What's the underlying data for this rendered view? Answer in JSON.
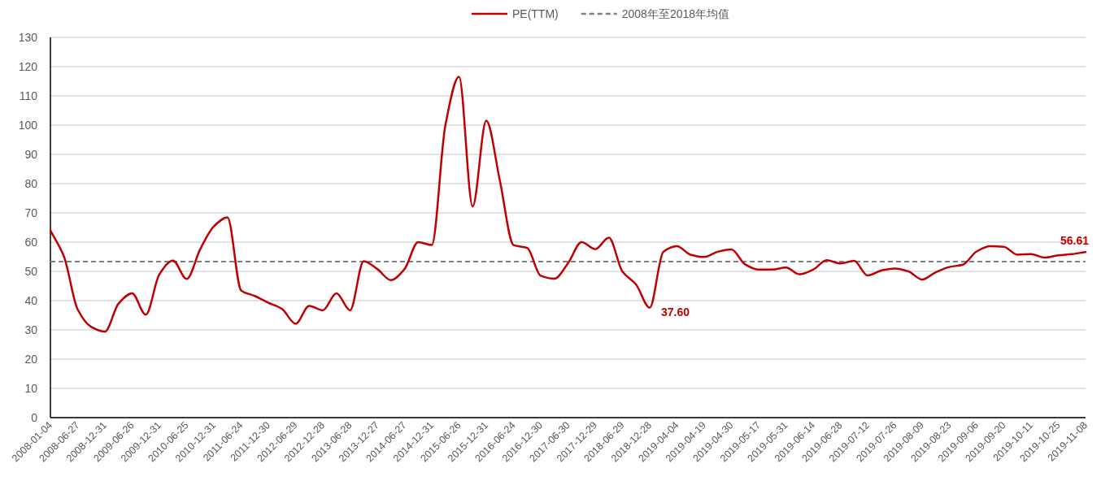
{
  "chart_data": {
    "type": "line",
    "categories": [
      "2008-01-04",
      null,
      "2008-06-27",
      null,
      "2008-12-31",
      null,
      "2009-06-26",
      null,
      "2009-12-31",
      null,
      "2010-06-25",
      null,
      "2010-12-31",
      null,
      "2011-06-24",
      null,
      "2011-12-30",
      null,
      "2012-06-29",
      null,
      "2012-12-28",
      null,
      "2013-06-28",
      null,
      "2013-12-27",
      null,
      "2014-06-27",
      null,
      "2014-12-31",
      null,
      "2015-06-26",
      null,
      "2015-12-31",
      null,
      "2016-06-24",
      null,
      "2016-12-30",
      null,
      "2017-06-30",
      null,
      "2017-12-29",
      null,
      "2018-06-29",
      null,
      "2018-12-28",
      null,
      "2019-04-04",
      null,
      "2019-04-19",
      null,
      "2019-04-30",
      null,
      "2019-05-17",
      null,
      "2019-05-31",
      null,
      "2019-06-14",
      null,
      "2019-06-28",
      null,
      "2019-07-12",
      null,
      "2019-07-26",
      null,
      "2019-08-09",
      null,
      "2019-08-23",
      null,
      "2019-09-06",
      null,
      "2019-09-20",
      null,
      "2019-10-11",
      null,
      "2019-10-25",
      null,
      "2019-11-08"
    ],
    "series": [
      {
        "name": "PE(TTM)",
        "color": "#c00000",
        "line_style": "solid",
        "marker": "none",
        "values": [
          64,
          55,
          37,
          31,
          29.4,
          39,
          42.5,
          35.2,
          49,
          53.7,
          47.4,
          57.6,
          65.4,
          68.5,
          43.5,
          41.6,
          39.3,
          37.2,
          32.1,
          38.2,
          36.7,
          42.5,
          36.7,
          53.5,
          50.8,
          47,
          50.8,
          60,
          59,
          100,
          116.5,
          72.2,
          101.5,
          81,
          59,
          58,
          48.5,
          47.5,
          52.8,
          60,
          57.6,
          61.5,
          49.9,
          45.5,
          37.6,
          56.7,
          58.6,
          55.7,
          54.9,
          56.7,
          57.5,
          52.4,
          50.6,
          50.6,
          51.3,
          49,
          50.6,
          53.8,
          52.7,
          53.6,
          48.6,
          50.3,
          51,
          50,
          47.2,
          49.7,
          51.5,
          52.3,
          56.8,
          58.6,
          58.4,
          55.7,
          55.9,
          54.7,
          55.5,
          55.9,
          56.61
        ],
        "value_labels": [
          null,
          null,
          null,
          null,
          null,
          null,
          null,
          null,
          null,
          null,
          null,
          null,
          null,
          null,
          null,
          null,
          null,
          null,
          null,
          null,
          null,
          null,
          null,
          null,
          null,
          null,
          null,
          null,
          null,
          null,
          null,
          null,
          null,
          null,
          null,
          null,
          null,
          null,
          null,
          null,
          null,
          null,
          null,
          null,
          "37.60",
          null,
          null,
          null,
          null,
          null,
          null,
          null,
          null,
          null,
          null,
          null,
          null,
          null,
          null,
          null,
          null,
          null,
          null,
          null,
          null,
          null,
          null,
          null,
          null,
          null,
          null,
          null,
          null,
          null,
          null,
          null,
          "56.61"
        ]
      }
    ],
    "ref_lines": [
      {
        "axis": "y",
        "value": 53.3,
        "label": "2008年至2018年均值",
        "color": "#808080",
        "line_style": "dashed"
      }
    ],
    "ylim": [
      0,
      130
    ],
    "yticks": [
      0,
      10,
      20,
      30,
      40,
      50,
      60,
      70,
      80,
      90,
      100,
      110,
      120,
      130
    ],
    "grid": "y",
    "legend": "top"
  }
}
